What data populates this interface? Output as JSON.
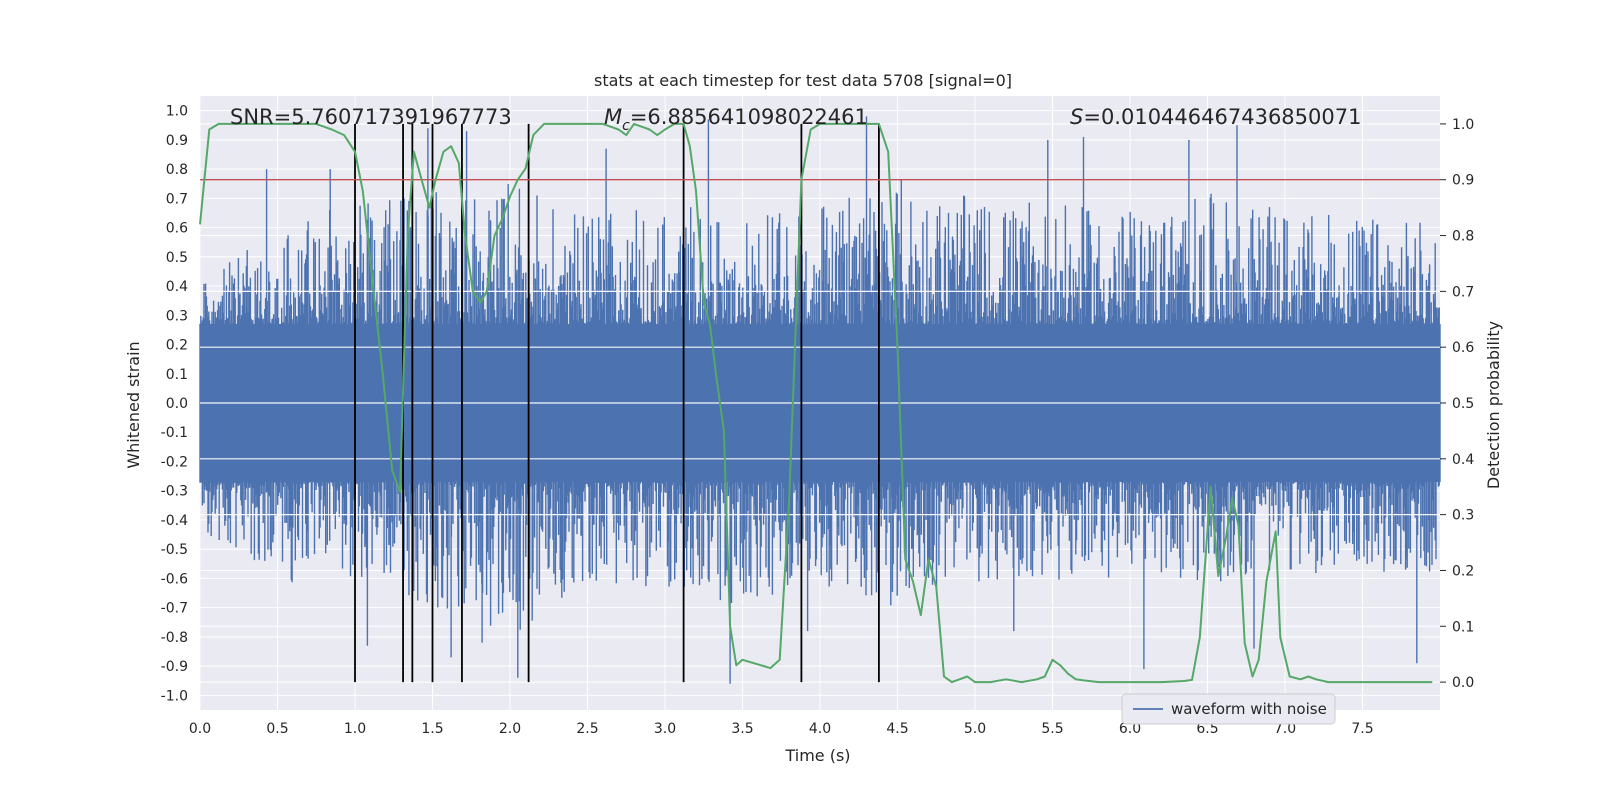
{
  "chart_data": {
    "type": "line",
    "title": "stats at each timestep for test data 5708 [signal=0]",
    "xlabel": "Time (s)",
    "ylabel_left": "Whitened strain",
    "ylabel_right": "Detection probability",
    "xlim": [
      0,
      8
    ],
    "ylim_left": [
      -1.05,
      1.05
    ],
    "ylim_right": [
      -0.05,
      1.05
    ],
    "x_ticks": [
      "0.0",
      "0.5",
      "1.0",
      "1.5",
      "2.0",
      "2.5",
      "3.0",
      "3.5",
      "4.0",
      "4.5",
      "5.0",
      "5.5",
      "6.0",
      "6.5",
      "7.0",
      "7.5"
    ],
    "y_left_ticks": [
      "1.0",
      "0.9",
      "0.8",
      "0.7",
      "0.6",
      "0.5",
      "0.4",
      "0.3",
      "0.2",
      "0.1",
      "0.0",
      "-0.1",
      "-0.2",
      "-0.3",
      "-0.4",
      "-0.5",
      "-0.6",
      "-0.7",
      "-0.8",
      "-0.9",
      "-1.0"
    ],
    "y_right_ticks": [
      "1.0",
      "0.9",
      "0.8",
      "0.7",
      "0.6",
      "0.5",
      "0.4",
      "0.3",
      "0.2",
      "0.1",
      "0.0"
    ],
    "annotations": {
      "snr": "SNR=5.760717391967773",
      "mc_symbol": "M",
      "mc_sub": "c",
      "mc_value": "=6.885641098022461",
      "s_symbol": "S",
      "s_value": "=0.010446467436850071"
    },
    "threshold": {
      "value": 0.9,
      "axis": "right",
      "color": "#c44e52"
    },
    "vertical_markers": [
      1.0,
      1.31,
      1.37,
      1.5,
      1.69,
      2.12,
      3.12,
      3.88,
      4.38
    ],
    "series": [
      {
        "name": "waveform with noise",
        "axis": "left",
        "color": "#4c72b0",
        "kind": "noise_envelope",
        "envelope": [
          [
            0.0,
            0.4,
            -0.43
          ],
          [
            0.5,
            0.62,
            -0.62
          ],
          [
            1.0,
            0.68,
            -0.6
          ],
          [
            1.5,
            0.72,
            -0.72
          ],
          [
            2.0,
            0.75,
            -0.8
          ],
          [
            2.5,
            0.64,
            -0.62
          ],
          [
            3.0,
            0.72,
            -0.66
          ],
          [
            3.5,
            0.62,
            -0.7
          ],
          [
            4.0,
            0.7,
            -0.63
          ],
          [
            4.5,
            0.78,
            -0.7
          ],
          [
            5.0,
            0.7,
            -0.62
          ],
          [
            5.5,
            0.68,
            -0.62
          ],
          [
            6.0,
            0.66,
            -0.6
          ],
          [
            6.5,
            0.72,
            -0.62
          ],
          [
            7.0,
            0.66,
            -0.58
          ],
          [
            7.5,
            0.64,
            -0.6
          ],
          [
            8.0,
            0.62,
            -0.58
          ]
        ],
        "peaks": [
          [
            0.43,
            0.8
          ],
          [
            0.84,
            0.8
          ],
          [
            1.08,
            -0.83
          ],
          [
            1.47,
            0.94
          ],
          [
            1.62,
            -0.87
          ],
          [
            1.72,
            0.93
          ],
          [
            1.82,
            -0.82
          ],
          [
            2.05,
            -0.94
          ],
          [
            2.62,
            0.87
          ],
          [
            3.28,
            0.97
          ],
          [
            3.42,
            -0.96
          ],
          [
            3.92,
            -0.78
          ],
          [
            4.3,
            0.98
          ],
          [
            5.25,
            -0.78
          ],
          [
            5.47,
            0.9
          ],
          [
            5.7,
            0.91
          ],
          [
            6.09,
            -0.91
          ],
          [
            6.38,
            0.9
          ],
          [
            6.69,
            0.95
          ],
          [
            6.8,
            -0.84
          ],
          [
            7.85,
            -0.89
          ]
        ]
      },
      {
        "name": "detection probability",
        "axis": "right",
        "color": "#55a868",
        "x": [
          0.0,
          0.06,
          0.12,
          0.2,
          0.3,
          0.45,
          0.6,
          0.75,
          0.85,
          0.93,
          1.0,
          1.05,
          1.12,
          1.18,
          1.24,
          1.29,
          1.34,
          1.38,
          1.43,
          1.48,
          1.52,
          1.57,
          1.62,
          1.67,
          1.71,
          1.76,
          1.81,
          1.85,
          1.9,
          1.95,
          2.0,
          2.05,
          2.1,
          2.15,
          2.22,
          2.3,
          2.45,
          2.6,
          2.7,
          2.75,
          2.8,
          2.9,
          2.95,
          3.0,
          3.06,
          3.12,
          3.16,
          3.2,
          3.25,
          3.29,
          3.33,
          3.38,
          3.42,
          3.46,
          3.5,
          3.56,
          3.62,
          3.68,
          3.74,
          3.8,
          3.88,
          3.94,
          4.0,
          4.1,
          4.2,
          4.3,
          4.38,
          4.44,
          4.5,
          4.55,
          4.6,
          4.65,
          4.7,
          4.75,
          4.8,
          4.85,
          4.9,
          4.95,
          5.0,
          5.1,
          5.2,
          5.3,
          5.4,
          5.45,
          5.5,
          5.55,
          5.6,
          5.65,
          5.7,
          5.8,
          5.9,
          6.0,
          6.2,
          6.35,
          6.4,
          6.45,
          6.52,
          6.57,
          6.62,
          6.66,
          6.7,
          6.74,
          6.79,
          6.83,
          6.88,
          6.94,
          6.97,
          7.03,
          7.1,
          7.15,
          7.2,
          7.28,
          7.4,
          7.6,
          7.8,
          7.95
        ],
        "y": [
          0.82,
          0.99,
          1.0,
          1.0,
          1.0,
          1.0,
          1.0,
          1.0,
          0.99,
          0.98,
          0.95,
          0.88,
          0.7,
          0.55,
          0.38,
          0.34,
          0.8,
          0.95,
          0.9,
          0.85,
          0.9,
          0.95,
          0.96,
          0.93,
          0.8,
          0.7,
          0.68,
          0.7,
          0.8,
          0.83,
          0.87,
          0.9,
          0.92,
          0.98,
          1.0,
          1.0,
          1.0,
          1.0,
          0.99,
          0.98,
          1.0,
          0.99,
          0.98,
          0.99,
          1.0,
          1.0,
          0.96,
          0.88,
          0.68,
          0.64,
          0.55,
          0.45,
          0.1,
          0.03,
          0.04,
          0.035,
          0.03,
          0.025,
          0.04,
          0.32,
          0.9,
          0.99,
          1.0,
          1.0,
          1.0,
          1.0,
          1.0,
          0.95,
          0.6,
          0.22,
          0.18,
          0.12,
          0.22,
          0.17,
          0.01,
          0.0,
          0.005,
          0.01,
          0.0,
          0.0,
          0.005,
          0.0,
          0.005,
          0.01,
          0.04,
          0.03,
          0.015,
          0.005,
          0.003,
          0.0,
          0.0,
          0.0,
          0.0,
          0.002,
          0.004,
          0.08,
          0.35,
          0.19,
          0.26,
          0.33,
          0.28,
          0.07,
          0.01,
          0.04,
          0.18,
          0.27,
          0.08,
          0.01,
          0.005,
          0.01,
          0.005,
          0.0,
          0.0,
          0.0,
          0.0,
          0.0
        ]
      }
    ],
    "legend": {
      "entries": [
        "waveform with noise"
      ],
      "location": "lower-right"
    }
  }
}
